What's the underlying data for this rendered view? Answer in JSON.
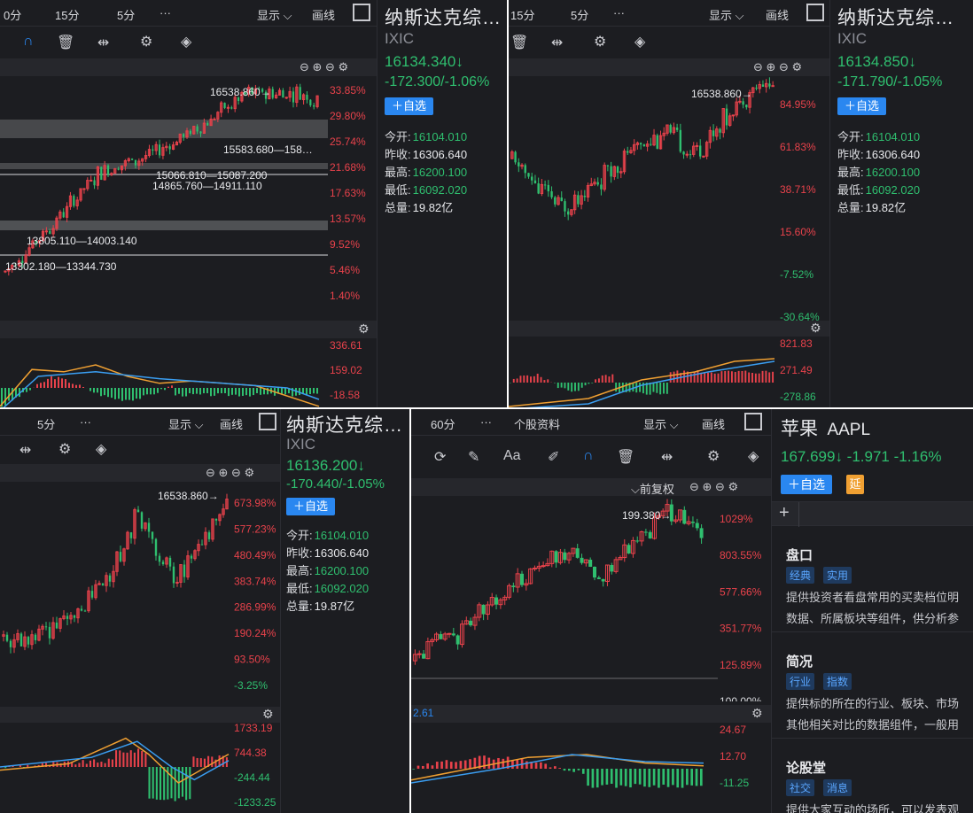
{
  "p1": {
    "tb": [
      "0分",
      "15分",
      "5分",
      "···",
      "显示",
      "画线"
    ],
    "name": "纳斯达克综…",
    "code": "IXIC",
    "price": "16134.340↓",
    "chg": "-172.300/-1.06%",
    "add": "＋自选",
    "stats": [
      [
        "今开:",
        "16104.010"
      ],
      [
        "昨收:",
        "16306.640"
      ],
      [
        "最高:",
        "16200.100"
      ],
      [
        "最低:",
        "16092.020"
      ],
      [
        "总量:",
        "19.82亿"
      ]
    ],
    "yaxis": [
      "33.85%",
      "29.80%",
      "25.74%",
      "21.68%",
      "17.63%",
      "13.57%",
      "9.52%",
      "5.46%",
      "1.40%"
    ],
    "macd": [
      "336.61",
      "159.02",
      "-18.58"
    ],
    "high": "16538.860→",
    "zones": [
      "15583.680—158…",
      "15066.810—15087.200",
      "14865.760—14911.110",
      "13805.110—14003.140",
      "13302.180—13344.730"
    ]
  },
  "p2": {
    "tb": [
      "15分",
      "5分",
      "···",
      "显示",
      "画线"
    ],
    "name": "纳斯达克综…",
    "code": "IXIC",
    "price": "16134.850↓",
    "chg": "-171.790/-1.05%",
    "add": "＋自选",
    "stats": [
      [
        "今开:",
        "16104.010"
      ],
      [
        "昨收:",
        "16306.640"
      ],
      [
        "最高:",
        "16200.100"
      ],
      [
        "最低:",
        "16092.020"
      ],
      [
        "总量:",
        "19.82亿"
      ]
    ],
    "yaxis": [
      "84.95%",
      "61.83%",
      "38.71%",
      "15.60%",
      "-7.52%",
      "-30.64%"
    ],
    "macd": [
      "821.83",
      "271.49",
      "-278.86"
    ],
    "high": "16538.860→"
  },
  "p3": {
    "tb": [
      "5分",
      "···",
      "显示",
      "画线"
    ],
    "name": "纳斯达克综…",
    "code": "IXIC",
    "price": "16136.200↓",
    "chg": "-170.440/-1.05%",
    "add": "＋自选",
    "stats": [
      [
        "今开:",
        "16104.010"
      ],
      [
        "昨收:",
        "16306.640"
      ],
      [
        "最高:",
        "16200.100"
      ],
      [
        "最低:",
        "16092.020"
      ],
      [
        "总量:",
        "19.87亿"
      ]
    ],
    "yaxis": [
      "673.98%",
      "577.23%",
      "480.49%",
      "383.74%",
      "286.99%",
      "190.24%",
      "93.50%",
      "-3.25%"
    ],
    "macd": [
      "1733.19",
      "744.38",
      "-244.44",
      "-1233.25"
    ],
    "high": "16538.860→"
  },
  "p4": {
    "tb": [
      "60分",
      "···",
      "个股资料",
      "显示",
      "画线"
    ],
    "name": "苹果",
    "code": "AAPL",
    "quote": "167.699↓ -1.971 -1.16%",
    "add": "＋自选",
    "delay": "延",
    "fq": "⌵前复权",
    "yaxis": [
      "1029%",
      "803.55%",
      "577.66%",
      "351.77%",
      "125.89%",
      "100.00%"
    ],
    "macd": [
      "24.67",
      "12.70",
      "-11.25"
    ],
    "macdleft": "2.61",
    "high": "199.380→",
    "sections": [
      {
        "title": "盘口",
        "tags": [
          "经典",
          "实用"
        ],
        "desc": [
          "提供投资者看盘常用的买卖档位明",
          "数据、所属板块等组件，供分析参"
        ]
      },
      {
        "title": "简况",
        "tags": [
          "行业",
          "指数"
        ],
        "desc": [
          "提供标的所在的行业、板块、市场",
          "其他相关对比的数据组件，一般用"
        ]
      },
      {
        "title": "论股堂",
        "tags": [
          "社交",
          "消息"
        ],
        "desc": [
          "提供大家互动的场所，可以发表观"
        ]
      }
    ]
  },
  "colors": {
    "up": "#e8424b",
    "down": "#2fbf6f",
    "bg": "#1c1d21",
    "accent": "#2a87f0",
    "orange": "#f0a032"
  }
}
